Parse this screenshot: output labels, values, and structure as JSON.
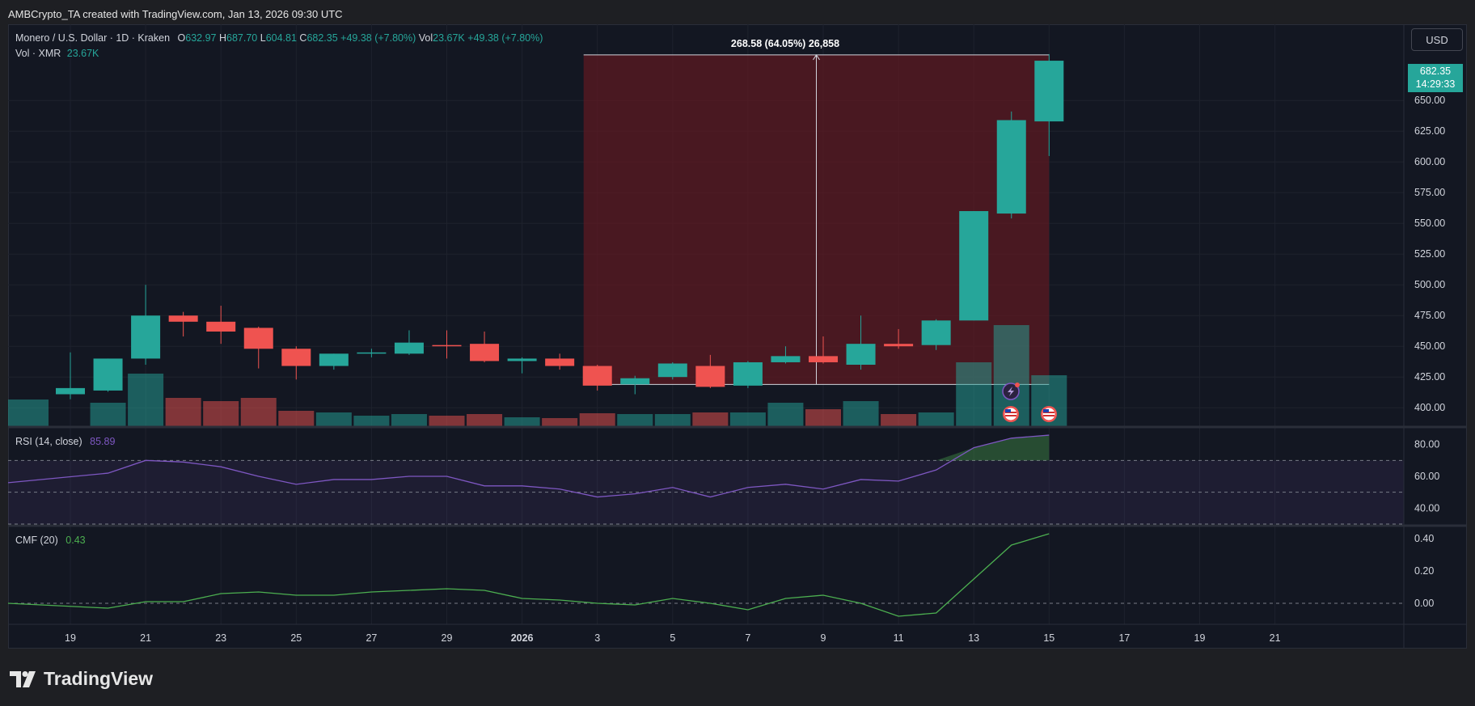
{
  "header": {
    "credit": "AMBCrypto_TA created with TradingView.com, Jan 13, 2026 09:30 UTC"
  },
  "legend": {
    "symbol": "Monero / U.S. Dollar · 1D · Kraken",
    "open_label": "O",
    "open": "632.97",
    "high_label": "H",
    "high": "687.70",
    "low_label": "L",
    "low": "604.81",
    "close_label": "C",
    "close": "682.35",
    "change": "+49.38 (+7.80%)",
    "vol_label": "Vol",
    "vol": "23.67K",
    "vol_change": "+49.38 (+7.80%)",
    "vol_row_label": "Vol · XMR",
    "vol_row_value": "23.67K"
  },
  "currency_button": "USD",
  "last_price": {
    "price": "682.35",
    "countdown": "14:29:33"
  },
  "measure": {
    "label": "268.58 (64.05%) 26,858"
  },
  "rsi": {
    "label": "RSI (14, close)",
    "value": "85.89",
    "ticks": [
      "80.00",
      "60.00",
      "40.00"
    ]
  },
  "cmf": {
    "label": "CMF (20)",
    "value": "0.43",
    "ticks": [
      "0.40",
      "0.20",
      "0.00"
    ]
  },
  "price_ticks": [
    "650.00",
    "625.00",
    "600.00",
    "575.00",
    "550.00",
    "525.00",
    "500.00",
    "475.00",
    "450.00",
    "425.00",
    "400.00"
  ],
  "x_ticks": [
    "19",
    "21",
    "23",
    "25",
    "27",
    "29",
    "2026",
    "3",
    "5",
    "7",
    "9",
    "11",
    "13",
    "15",
    "17",
    "19",
    "21"
  ],
  "colors": {
    "up": "#26a69a",
    "down": "#ef5350",
    "rsi": "#7e57c2",
    "cmf": "#4caf50",
    "measure_fill": "#5c1a22"
  },
  "icons": [
    "tradingview-logo-icon",
    "us-flag-event-icon",
    "lightning-event-icon"
  ],
  "footer": {
    "brand": "TradingView"
  },
  "chart_data": {
    "type": "candlestick",
    "title": "Monero / U.S. Dollar · 1D · Kraken",
    "x_ticks": [
      "19",
      "21",
      "23",
      "25",
      "27",
      "29",
      "2026",
      "3",
      "5",
      "7",
      "9",
      "11",
      "13",
      "15",
      "17",
      "19",
      "21"
    ],
    "candles": [
      {
        "o": 411,
        "h": 445,
        "l": 407,
        "c": 416
      },
      {
        "o": 414,
        "h": 440,
        "l": 413,
        "c": 440
      },
      {
        "o": 440,
        "h": 500,
        "l": 435,
        "c": 475
      },
      {
        "o": 475,
        "h": 478,
        "l": 458,
        "c": 470
      },
      {
        "o": 470,
        "h": 483,
        "l": 452,
        "c": 462
      },
      {
        "o": 465,
        "h": 466,
        "l": 432,
        "c": 448
      },
      {
        "o": 448,
        "h": 450,
        "l": 423,
        "c": 434
      },
      {
        "o": 434,
        "h": 444,
        "l": 431,
        "c": 444
      },
      {
        "o": 445,
        "h": 448,
        "l": 441,
        "c": 445
      },
      {
        "o": 444,
        "h": 463,
        "l": 443,
        "c": 453
      },
      {
        "o": 451,
        "h": 463,
        "l": 440,
        "c": 450
      },
      {
        "o": 452,
        "h": 462,
        "l": 437,
        "c": 438
      },
      {
        "o": 438,
        "h": 441,
        "l": 428,
        "c": 440
      },
      {
        "o": 440,
        "h": 444,
        "l": 431,
        "c": 434
      },
      {
        "o": 434,
        "h": 435,
        "l": 414,
        "c": 418
      },
      {
        "o": 419,
        "h": 426,
        "l": 411,
        "c": 424
      },
      {
        "o": 425,
        "h": 437,
        "l": 423,
        "c": 436
      },
      {
        "o": 434,
        "h": 443,
        "l": 416,
        "c": 417
      },
      {
        "o": 418,
        "h": 438,
        "l": 416,
        "c": 437
      },
      {
        "o": 437,
        "h": 450,
        "l": 436,
        "c": 442
      },
      {
        "o": 442,
        "h": 458,
        "l": 436,
        "c": 437
      },
      {
        "o": 435,
        "h": 475,
        "l": 431,
        "c": 452
      },
      {
        "o": 452,
        "h": 464,
        "l": 448,
        "c": 450
      },
      {
        "o": 451,
        "h": 472,
        "l": 447,
        "c": 471
      },
      {
        "o": 471,
        "h": 560,
        "l": 471,
        "c": 560
      },
      {
        "o": 558,
        "h": 641,
        "l": 554,
        "c": 634
      },
      {
        "o": 632.97,
        "h": 687.7,
        "l": 604.81,
        "c": 682.35
      }
    ],
    "volume": [
      1.7,
      1.5,
      3.3,
      1.8,
      1.6,
      1.8,
      1.0,
      0.9,
      0.7,
      0.8,
      0.7,
      0.8,
      0.6,
      0.55,
      0.85,
      0.8,
      0.8,
      0.9,
      0.9,
      1.5,
      1.1,
      1.6,
      0.8,
      0.9,
      4.0,
      6.3,
      3.2
    ],
    "rsi": [
      56,
      62,
      70,
      69,
      66,
      60,
      55,
      58,
      58,
      60,
      60,
      54,
      54,
      52,
      47,
      49,
      53,
      47,
      53,
      55,
      52,
      58,
      57,
      64,
      78,
      84,
      85.89
    ],
    "cmf": [
      0.0,
      -0.03,
      0.01,
      0.01,
      0.06,
      0.07,
      0.05,
      0.05,
      0.07,
      0.08,
      0.09,
      0.08,
      0.03,
      0.02,
      0.0,
      -0.01,
      0.03,
      0.0,
      -0.04,
      0.03,
      0.05,
      0.0,
      -0.08,
      -0.06,
      0.15,
      0.36,
      0.43
    ],
    "price_ylim": [
      385,
      712
    ],
    "rsi_ylim": [
      30,
      90
    ],
    "cmf_ylim": [
      -0.12,
      0.47
    ],
    "measurement": {
      "from_index": 14,
      "to_index": 26,
      "low": 419,
      "high": 687.7,
      "change": "268.58 (64.05%)",
      "bars": "26,858"
    }
  }
}
